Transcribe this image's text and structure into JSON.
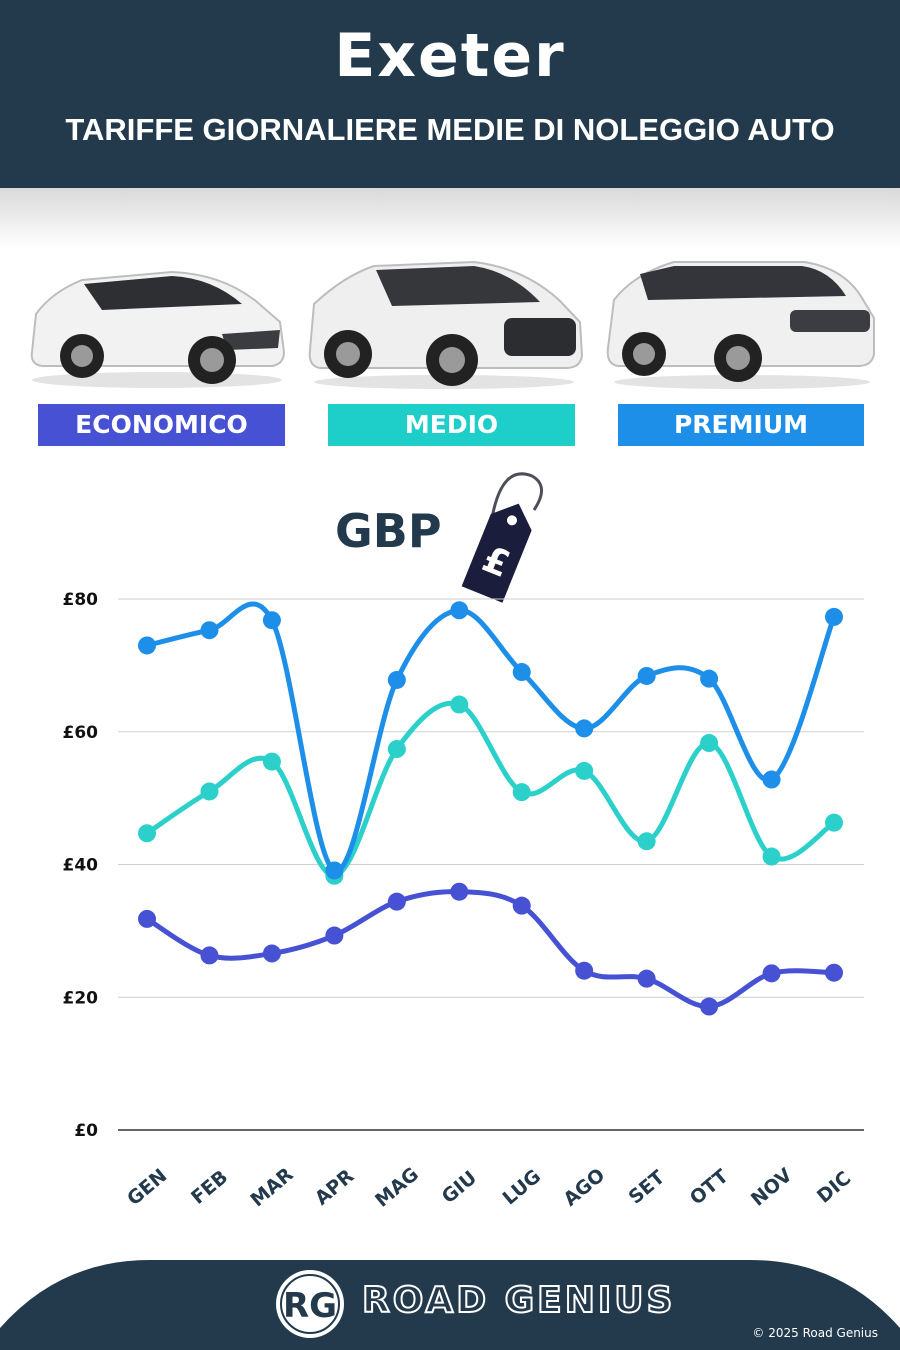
{
  "header": {
    "title": "Exeter",
    "subtitle": "TARIFFE GIORNALIERE MEDIE DI NOLEGGIO AUTO"
  },
  "categories": [
    {
      "label": "ECONOMICO",
      "color": "#4651d3"
    },
    {
      "label": "MEDIO",
      "color": "#1ecfc9"
    },
    {
      "label": "PREMIUM",
      "color": "#1e8fe8"
    }
  ],
  "currency": {
    "label": "GBP",
    "tag_symbol": "£"
  },
  "chart_data": {
    "type": "line",
    "categories": [
      "GEN",
      "FEB",
      "MAR",
      "APR",
      "MAG",
      "GIU",
      "LUG",
      "AGO",
      "SET",
      "OTT",
      "NOV",
      "DIC"
    ],
    "series": [
      {
        "name": "ECONOMICO",
        "color": "#4651d3",
        "values": [
          31.8,
          26.3,
          26.6,
          29.3,
          34.4,
          35.9,
          33.8,
          24.0,
          22.8,
          18.6,
          23.6,
          23.7
        ]
      },
      {
        "name": "MEDIO",
        "color": "#2cd0cb",
        "values": [
          44.7,
          51.0,
          55.5,
          38.3,
          57.4,
          64.1,
          50.9,
          54.1,
          43.5,
          58.3,
          41.2,
          46.3
        ]
      },
      {
        "name": "PREMIUM",
        "color": "#1e8fe8",
        "values": [
          73.0,
          75.3,
          76.8,
          39.1,
          67.8,
          78.3,
          69.0,
          60.5,
          68.4,
          68.0,
          52.8,
          77.3
        ]
      }
    ],
    "y_ticks": [
      "£0",
      "£20",
      "£40",
      "£60",
      "£80"
    ],
    "y_tick_values": [
      0,
      20,
      40,
      60,
      80
    ],
    "ylim": [
      0,
      80
    ],
    "grid": true
  },
  "footer": {
    "logo_initials": "RG",
    "brand": "ROAD GENIUS",
    "copyright": "© 2025 Road Genius"
  }
}
